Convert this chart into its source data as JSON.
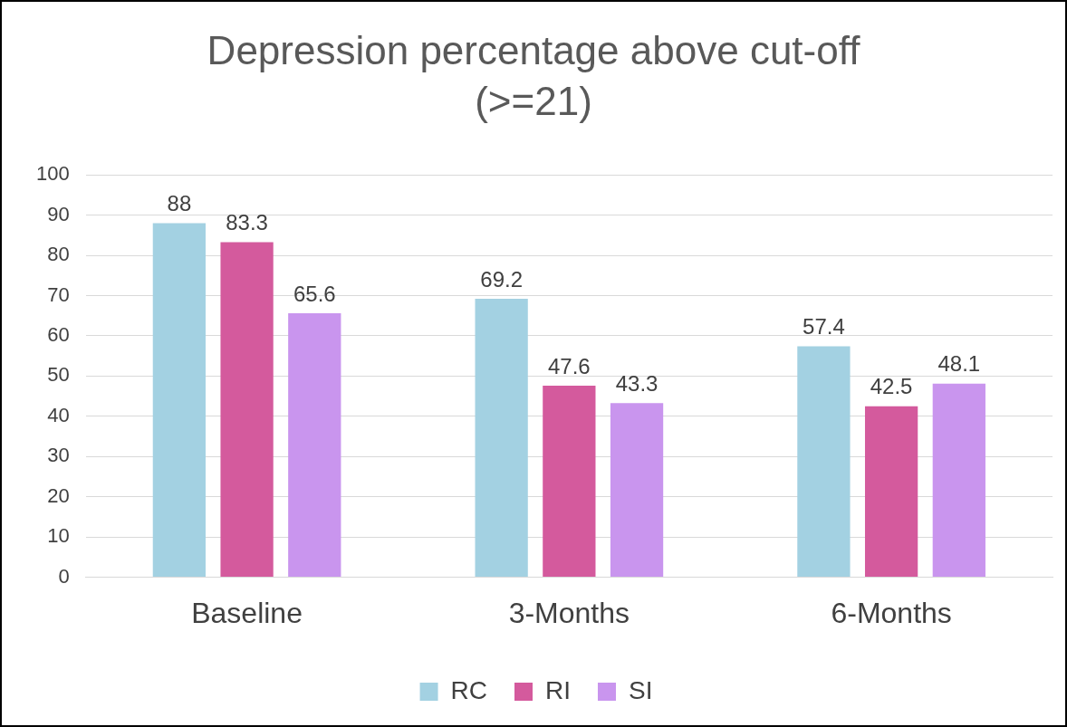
{
  "chart_data": {
    "type": "bar",
    "title": "Depression percentage above cut-off (>=21)",
    "categories": [
      "Baseline",
      "3-Months",
      "6-Months"
    ],
    "series": [
      {
        "name": "RC",
        "color": "#a3d1e2",
        "values": [
          88,
          69.2,
          57.4
        ]
      },
      {
        "name": "RI",
        "color": "#d45a9d",
        "values": [
          83.3,
          47.6,
          42.5
        ]
      },
      {
        "name": "SI",
        "color": "#c995ee",
        "values": [
          65.6,
          43.3,
          48.1
        ]
      }
    ],
    "ylim": [
      0,
      100
    ],
    "yticks": [
      0,
      10,
      20,
      30,
      40,
      50,
      60,
      70,
      80,
      90,
      100
    ],
    "grid": "y",
    "legend": "bottom",
    "data_labels": true
  }
}
